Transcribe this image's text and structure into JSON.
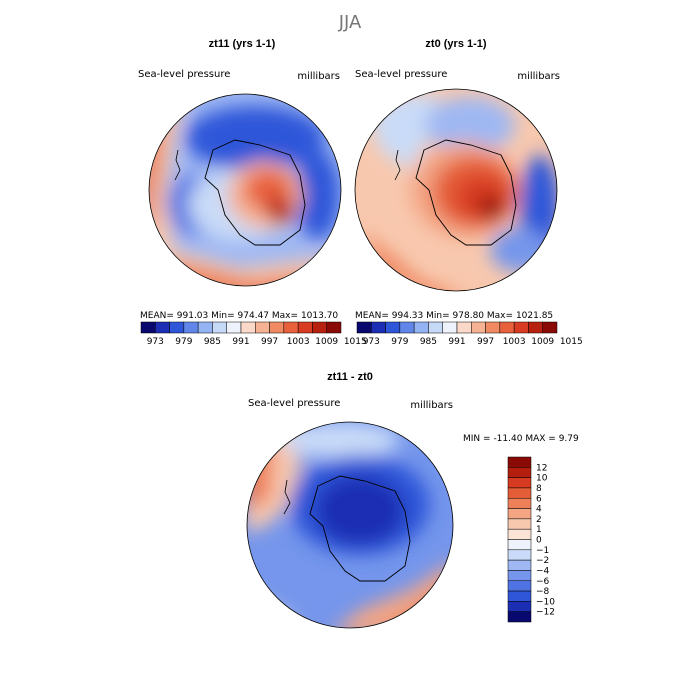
{
  "season_title": "JJA",
  "chart_data": [
    {
      "type": "heatmap",
      "title": "zt11 (yrs 1-1)",
      "variable": "Sea-level pressure",
      "units": "millibars",
      "stats": {
        "mean_label": "MEAN=",
        "mean": "991.03",
        "min_label": "Min=",
        "min": "974.47",
        "max_label": "Max=",
        "max": "1013.70"
      },
      "colorbar_ticks": [
        "973",
        "979",
        "985",
        "991",
        "997",
        "1003",
        "1009",
        "1015"
      ]
    },
    {
      "type": "heatmap",
      "title": "zt0 (yrs 1-1)",
      "variable": "Sea-level pressure",
      "units": "millibars",
      "stats": {
        "mean_label": "MEAN=",
        "mean": "994.33",
        "min_label": "Min=",
        "min": "978.80",
        "max_label": "Max=",
        "max": "1021.85"
      },
      "colorbar_ticks": [
        "973",
        "979",
        "985",
        "991",
        "997",
        "1003",
        "1009",
        "1015"
      ]
    },
    {
      "type": "heatmap",
      "title": "zt11 - zt0",
      "variable": "Sea-level pressure",
      "units": "millibars",
      "stats": {
        "min_label": "MIN =",
        "min": "-11.40",
        "max_label": "MAX =",
        "max": "9.79"
      },
      "colorbar_ticks": [
        "12",
        "10",
        "8",
        "6",
        "4",
        "2",
        "1",
        "0",
        "−1",
        "−2",
        "−4",
        "−6",
        "−8",
        "−10",
        "−12"
      ]
    }
  ],
  "palettes": {
    "absolute": [
      "#08086e",
      "#1c2fb4",
      "#2f56d9",
      "#5f86e8",
      "#93b3f2",
      "#c6d9f7",
      "#eef2fb",
      "#fbd9c8",
      "#f6b394",
      "#ef8a62",
      "#e8603c",
      "#d83a22",
      "#b8200f",
      "#8a0a05"
    ],
    "difference": [
      "#08086e",
      "#1c2fb4",
      "#2f56d9",
      "#4f73e3",
      "#7596ec",
      "#9fb8f3",
      "#c9dbf8",
      "#eef2fb",
      "#fbe3d6",
      "#f8c8ae",
      "#f3a584",
      "#ee8059",
      "#e55d37",
      "#d63a20",
      "#b41e0e",
      "#8a0a05"
    ]
  }
}
